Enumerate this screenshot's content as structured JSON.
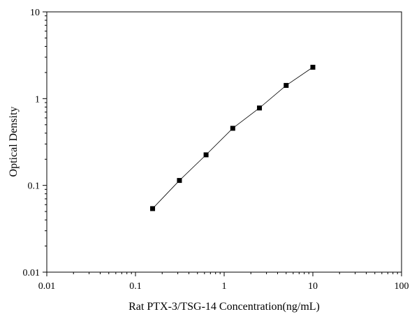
{
  "chart_data": {
    "type": "scatter",
    "title": "",
    "xlabel": "Rat PTX-3/TSG-14 Concentration(ng/mL)",
    "ylabel": "Optical Density",
    "x_scale": "log",
    "y_scale": "log",
    "xlim": [
      0.01,
      100
    ],
    "ylim": [
      0.01,
      10
    ],
    "x_ticks": [
      0.01,
      0.1,
      1,
      10,
      100
    ],
    "x_tick_labels": [
      "0.01",
      "0.1",
      "1",
      "10",
      "100"
    ],
    "y_ticks": [
      0.01,
      0.1,
      1,
      10
    ],
    "y_tick_labels": [
      "0.01",
      "0.1",
      "1",
      "10"
    ],
    "grid": false,
    "legend": "none",
    "series": [
      {
        "marker": "square",
        "connected": true,
        "color": "#000000",
        "x": [
          0.156,
          0.313,
          0.625,
          1.25,
          2.5,
          5,
          10
        ],
        "y": [
          0.054,
          0.114,
          0.225,
          0.455,
          0.78,
          1.42,
          2.3
        ]
      }
    ]
  }
}
